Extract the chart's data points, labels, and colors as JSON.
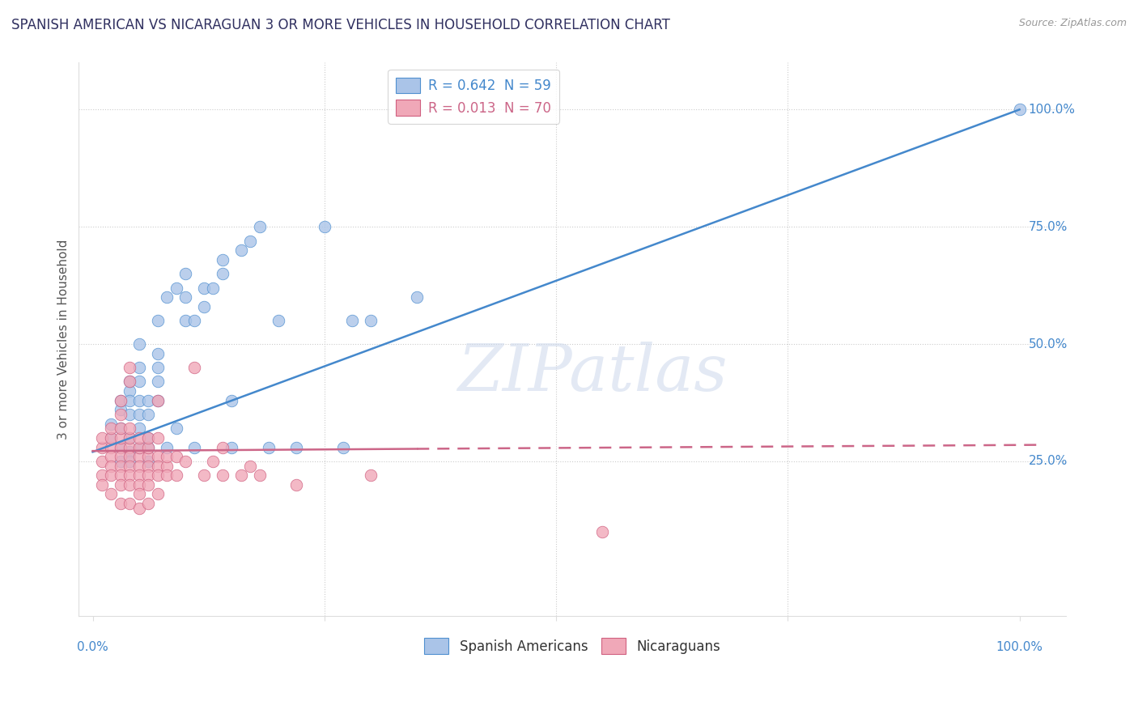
{
  "title": "SPANISH AMERICAN VS NICARAGUAN 3 OR MORE VEHICLES IN HOUSEHOLD CORRELATION CHART",
  "source": "Source: ZipAtlas.com",
  "ylabel": "3 or more Vehicles in Household",
  "ytick_labels": [
    "25.0%",
    "50.0%",
    "75.0%",
    "100.0%"
  ],
  "ytick_values": [
    0.25,
    0.5,
    0.75,
    1.0
  ],
  "xtick_values": [
    0.0,
    0.25,
    0.5,
    0.75,
    1.0
  ],
  "legend_blue_label": "R = 0.642  N = 59",
  "legend_pink_label": "R = 0.013  N = 70",
  "blue_scatter_color": "#aac4e8",
  "pink_scatter_color": "#f0a8b8",
  "blue_edge_color": "#5090d0",
  "pink_edge_color": "#d06080",
  "blue_line_color": "#4488cc",
  "pink_line_color": "#cc6688",
  "background_color": "#ffffff",
  "grid_color": "#cccccc",
  "title_color": "#303060",
  "axis_label_color": "#4488cc",
  "watermark": "ZIPatlas",
  "blue_points": [
    [
      0.02,
      0.3
    ],
    [
      0.02,
      0.33
    ],
    [
      0.03,
      0.36
    ],
    [
      0.03,
      0.32
    ],
    [
      0.03,
      0.28
    ],
    [
      0.03,
      0.38
    ],
    [
      0.04,
      0.4
    ],
    [
      0.04,
      0.35
    ],
    [
      0.04,
      0.38
    ],
    [
      0.04,
      0.42
    ],
    [
      0.04,
      0.3
    ],
    [
      0.04,
      0.27
    ],
    [
      0.05,
      0.35
    ],
    [
      0.05,
      0.38
    ],
    [
      0.05,
      0.32
    ],
    [
      0.05,
      0.42
    ],
    [
      0.05,
      0.45
    ],
    [
      0.05,
      0.5
    ],
    [
      0.06,
      0.35
    ],
    [
      0.06,
      0.38
    ],
    [
      0.06,
      0.3
    ],
    [
      0.06,
      0.28
    ],
    [
      0.07,
      0.38
    ],
    [
      0.07,
      0.42
    ],
    [
      0.07,
      0.45
    ],
    [
      0.07,
      0.48
    ],
    [
      0.07,
      0.55
    ],
    [
      0.08,
      0.6
    ],
    [
      0.08,
      0.28
    ],
    [
      0.09,
      0.62
    ],
    [
      0.09,
      0.32
    ],
    [
      0.1,
      0.55
    ],
    [
      0.1,
      0.6
    ],
    [
      0.1,
      0.65
    ],
    [
      0.11,
      0.55
    ],
    [
      0.11,
      0.28
    ],
    [
      0.12,
      0.62
    ],
    [
      0.12,
      0.58
    ],
    [
      0.13,
      0.62
    ],
    [
      0.14,
      0.65
    ],
    [
      0.14,
      0.68
    ],
    [
      0.15,
      0.38
    ],
    [
      0.15,
      0.28
    ],
    [
      0.16,
      0.7
    ],
    [
      0.17,
      0.72
    ],
    [
      0.18,
      0.75
    ],
    [
      0.19,
      0.28
    ],
    [
      0.2,
      0.55
    ],
    [
      0.22,
      0.28
    ],
    [
      0.25,
      0.75
    ],
    [
      0.27,
      0.28
    ],
    [
      0.28,
      0.55
    ],
    [
      0.3,
      0.55
    ],
    [
      0.35,
      0.6
    ],
    [
      1.0,
      1.0
    ],
    [
      0.03,
      0.25
    ],
    [
      0.04,
      0.25
    ],
    [
      0.05,
      0.28
    ],
    [
      0.06,
      0.25
    ]
  ],
  "pink_points": [
    [
      0.01,
      0.28
    ],
    [
      0.01,
      0.3
    ],
    [
      0.01,
      0.25
    ],
    [
      0.01,
      0.22
    ],
    [
      0.01,
      0.2
    ],
    [
      0.02,
      0.28
    ],
    [
      0.02,
      0.26
    ],
    [
      0.02,
      0.24
    ],
    [
      0.02,
      0.22
    ],
    [
      0.02,
      0.3
    ],
    [
      0.02,
      0.32
    ],
    [
      0.02,
      0.18
    ],
    [
      0.03,
      0.28
    ],
    [
      0.03,
      0.26
    ],
    [
      0.03,
      0.24
    ],
    [
      0.03,
      0.22
    ],
    [
      0.03,
      0.2
    ],
    [
      0.03,
      0.3
    ],
    [
      0.03,
      0.32
    ],
    [
      0.03,
      0.35
    ],
    [
      0.03,
      0.38
    ],
    [
      0.04,
      0.28
    ],
    [
      0.04,
      0.26
    ],
    [
      0.04,
      0.24
    ],
    [
      0.04,
      0.22
    ],
    [
      0.04,
      0.2
    ],
    [
      0.04,
      0.3
    ],
    [
      0.04,
      0.32
    ],
    [
      0.04,
      0.42
    ],
    [
      0.04,
      0.45
    ],
    [
      0.05,
      0.26
    ],
    [
      0.05,
      0.24
    ],
    [
      0.05,
      0.22
    ],
    [
      0.05,
      0.2
    ],
    [
      0.05,
      0.28
    ],
    [
      0.05,
      0.3
    ],
    [
      0.05,
      0.18
    ],
    [
      0.06,
      0.26
    ],
    [
      0.06,
      0.24
    ],
    [
      0.06,
      0.22
    ],
    [
      0.06,
      0.2
    ],
    [
      0.06,
      0.28
    ],
    [
      0.06,
      0.3
    ],
    [
      0.07,
      0.26
    ],
    [
      0.07,
      0.24
    ],
    [
      0.07,
      0.22
    ],
    [
      0.07,
      0.3
    ],
    [
      0.07,
      0.38
    ],
    [
      0.07,
      0.18
    ],
    [
      0.08,
      0.24
    ],
    [
      0.08,
      0.22
    ],
    [
      0.08,
      0.26
    ],
    [
      0.09,
      0.26
    ],
    [
      0.09,
      0.22
    ],
    [
      0.1,
      0.25
    ],
    [
      0.11,
      0.45
    ],
    [
      0.12,
      0.22
    ],
    [
      0.13,
      0.25
    ],
    [
      0.14,
      0.28
    ],
    [
      0.14,
      0.22
    ],
    [
      0.16,
      0.22
    ],
    [
      0.17,
      0.24
    ],
    [
      0.18,
      0.22
    ],
    [
      0.22,
      0.2
    ],
    [
      0.3,
      0.22
    ],
    [
      0.55,
      0.1
    ],
    [
      0.03,
      0.16
    ],
    [
      0.04,
      0.16
    ],
    [
      0.05,
      0.15
    ],
    [
      0.06,
      0.16
    ]
  ]
}
